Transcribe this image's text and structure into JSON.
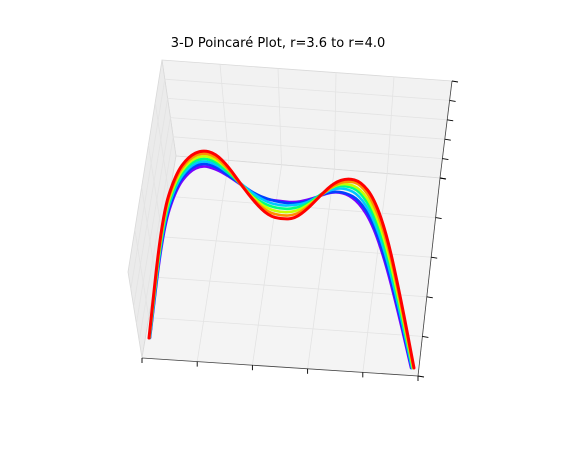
{
  "chart_data": {
    "type": "line",
    "title": "3-D Poincaré Plot, r=3.6 to r=4.0",
    "xlabel": "",
    "ylabel": "",
    "zlabel": "",
    "projection": "3d",
    "grid": true,
    "legend": "none",
    "colormap": "rainbow",
    "x": [
      0.0,
      0.05,
      0.1,
      0.15,
      0.2,
      0.25,
      0.3,
      0.35,
      0.4,
      0.45,
      0.5,
      0.55,
      0.6,
      0.65,
      0.7,
      0.75,
      0.8,
      0.85,
      0.9,
      0.95,
      1.0
    ],
    "series": [
      {
        "color": "#7a00ff",
        "values": [
          0.0,
          0.58,
          0.8,
          0.9,
          0.94,
          0.93,
          0.9,
          0.86,
          0.82,
          0.8,
          0.8,
          0.8,
          0.82,
          0.85,
          0.88,
          0.88,
          0.84,
          0.74,
          0.55,
          0.29,
          0.0
        ]
      },
      {
        "color": "#0040ff",
        "values": [
          0.0,
          0.59,
          0.81,
          0.91,
          0.95,
          0.94,
          0.9,
          0.86,
          0.82,
          0.8,
          0.79,
          0.79,
          0.81,
          0.85,
          0.88,
          0.88,
          0.85,
          0.75,
          0.56,
          0.3,
          0.0
        ]
      },
      {
        "color": "#00c8ff",
        "values": [
          0.0,
          0.6,
          0.82,
          0.92,
          0.96,
          0.95,
          0.91,
          0.86,
          0.81,
          0.78,
          0.77,
          0.78,
          0.8,
          0.85,
          0.89,
          0.9,
          0.87,
          0.77,
          0.58,
          0.31,
          0.0
        ]
      },
      {
        "color": "#00ff80",
        "values": [
          0.0,
          0.61,
          0.83,
          0.93,
          0.97,
          0.96,
          0.91,
          0.85,
          0.79,
          0.76,
          0.75,
          0.76,
          0.79,
          0.85,
          0.9,
          0.91,
          0.89,
          0.79,
          0.6,
          0.32,
          0.0
        ]
      },
      {
        "color": "#c8ff00",
        "values": [
          0.0,
          0.62,
          0.84,
          0.94,
          0.98,
          0.97,
          0.92,
          0.85,
          0.78,
          0.74,
          0.73,
          0.74,
          0.78,
          0.84,
          0.9,
          0.92,
          0.9,
          0.81,
          0.62,
          0.33,
          0.0
        ]
      },
      {
        "color": "#ff9000",
        "values": [
          0.0,
          0.63,
          0.85,
          0.95,
          0.99,
          0.98,
          0.92,
          0.84,
          0.77,
          0.72,
          0.71,
          0.72,
          0.77,
          0.84,
          0.9,
          0.93,
          0.92,
          0.83,
          0.64,
          0.34,
          0.0
        ]
      },
      {
        "color": "#ff0000",
        "values": [
          0.0,
          0.64,
          0.86,
          0.96,
          1.0,
          0.99,
          0.93,
          0.84,
          0.76,
          0.7,
          0.69,
          0.7,
          0.76,
          0.84,
          0.91,
          0.94,
          0.93,
          0.85,
          0.66,
          0.35,
          0.0
        ]
      }
    ]
  }
}
